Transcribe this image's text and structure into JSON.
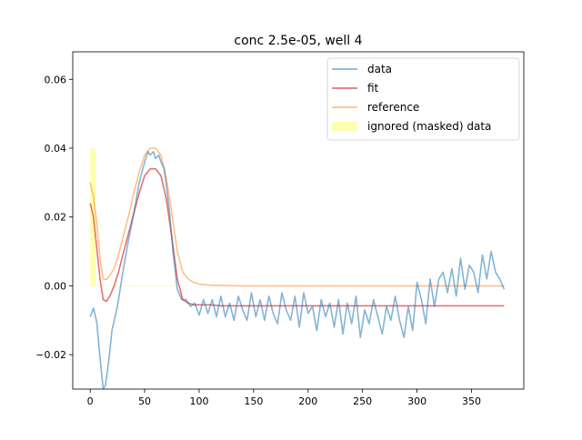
{
  "chart_data": {
    "type": "line",
    "title": "conc 2.5e-05, well 4",
    "xlabel": "",
    "ylabel": "",
    "xlim": [
      -16,
      398
    ],
    "ylim": [
      -0.03,
      0.068
    ],
    "x_ticks": [
      0,
      50,
      100,
      150,
      200,
      250,
      300,
      350
    ],
    "y_ticks": [
      -0.02,
      0.0,
      0.02,
      0.04,
      0.06
    ],
    "x_tick_labels": [
      "0",
      "50",
      "100",
      "150",
      "200",
      "250",
      "300",
      "350"
    ],
    "y_tick_labels": [
      "−0.02",
      "0.00",
      "0.02",
      "0.04",
      "0.06"
    ],
    "grid": false,
    "legend_position": "top-right",
    "legend": [
      "data",
      "fit",
      "reference",
      "ignored (masked) data"
    ],
    "colors": {
      "data": "#1f77b4",
      "fit": "#d62728",
      "reference": "#ff7f0e",
      "masked": "#ffff00"
    },
    "masked_region": {
      "x_start": 0,
      "x_end": 5,
      "y_start": 0.0,
      "y_end": 0.04
    },
    "masked_baseline": {
      "x_start": 0,
      "x_end": 90,
      "y": 0.0
    },
    "series": [
      {
        "name": "data",
        "x": [
          0,
          3,
          6,
          9,
          12,
          14,
          17,
          20,
          25,
          30,
          35,
          40,
          45,
          50,
          53,
          55,
          58,
          60,
          63,
          65,
          68,
          70,
          73,
          76,
          80,
          84,
          88,
          92,
          96,
          100,
          104,
          108,
          112,
          116,
          120,
          124,
          128,
          132,
          136,
          140,
          144,
          148,
          152,
          156,
          160,
          164,
          168,
          172,
          176,
          180,
          184,
          188,
          192,
          196,
          200,
          204,
          208,
          212,
          216,
          220,
          224,
          228,
          232,
          236,
          240,
          244,
          248,
          252,
          256,
          260,
          264,
          268,
          272,
          276,
          280,
          284,
          288,
          292,
          296,
          300,
          304,
          308,
          312,
          316,
          320,
          324,
          328,
          332,
          336,
          340,
          344,
          348,
          352,
          356,
          360,
          364,
          368,
          372,
          376,
          380
        ],
        "y": [
          -0.009,
          -0.0065,
          -0.0105,
          -0.021,
          -0.03,
          -0.029,
          -0.022,
          -0.013,
          -0.006,
          0.004,
          0.013,
          0.021,
          0.03,
          0.036,
          0.039,
          0.038,
          0.039,
          0.037,
          0.038,
          0.036,
          0.034,
          0.029,
          0.021,
          0.01,
          -0.001,
          -0.004,
          -0.004,
          -0.006,
          -0.005,
          -0.0085,
          -0.004,
          -0.008,
          -0.004,
          -0.009,
          -0.003,
          -0.009,
          -0.005,
          -0.01,
          -0.003,
          -0.007,
          -0.01,
          -0.002,
          -0.009,
          -0.004,
          -0.01,
          -0.003,
          -0.008,
          -0.011,
          -0.002,
          -0.007,
          -0.01,
          -0.003,
          -0.012,
          -0.002,
          -0.008,
          -0.006,
          -0.013,
          -0.004,
          -0.009,
          -0.005,
          -0.012,
          -0.004,
          -0.014,
          -0.005,
          -0.011,
          -0.003,
          -0.015,
          -0.007,
          -0.011,
          -0.004,
          -0.009,
          -0.014,
          -0.006,
          -0.01,
          -0.003,
          -0.01,
          -0.015,
          -0.006,
          -0.013,
          0.001,
          -0.004,
          -0.011,
          0.002,
          -0.006,
          0.002,
          0.004,
          -0.002,
          0.005,
          -0.003,
          0.008,
          -0.001,
          0.006,
          0.004,
          -0.002,
          0.009,
          0.002,
          0.01,
          0.004,
          0.002,
          -0.001
        ]
      },
      {
        "name": "fit",
        "x": [
          0,
          3,
          6,
          9,
          12,
          15,
          18,
          22,
          26,
          30,
          35,
          40,
          45,
          50,
          55,
          60,
          65,
          70,
          75,
          80,
          85,
          90,
          95,
          100,
          110,
          120,
          140,
          160,
          200,
          250,
          300,
          350,
          380
        ],
        "y": [
          0.024,
          0.02,
          0.011,
          0.002,
          -0.004,
          -0.0045,
          -0.003,
          0.0,
          0.004,
          0.009,
          0.015,
          0.021,
          0.027,
          0.032,
          0.034,
          0.034,
          0.032,
          0.025,
          0.014,
          0.002,
          -0.004,
          -0.005,
          -0.0055,
          -0.0055,
          -0.0055,
          -0.0058,
          -0.0058,
          -0.0058,
          -0.0058,
          -0.0058,
          -0.0058,
          -0.0058,
          -0.0058
        ]
      },
      {
        "name": "reference",
        "x": [
          0,
          3,
          6,
          9,
          12,
          15,
          18,
          22,
          26,
          30,
          35,
          40,
          45,
          50,
          55,
          60,
          65,
          70,
          75,
          80,
          85,
          90,
          95,
          100,
          110,
          120,
          140,
          160,
          200,
          250,
          300,
          350,
          380
        ],
        "y": [
          0.03,
          0.026,
          0.018,
          0.008,
          0.002,
          0.0018,
          0.003,
          0.005,
          0.009,
          0.014,
          0.02,
          0.027,
          0.033,
          0.038,
          0.04,
          0.04,
          0.038,
          0.031,
          0.021,
          0.01,
          0.004,
          0.002,
          0.001,
          0.0005,
          0.0002,
          0.0001,
          0.0,
          0.0,
          0.0,
          0.0,
          0.0,
          0.0,
          0.0
        ]
      }
    ]
  }
}
